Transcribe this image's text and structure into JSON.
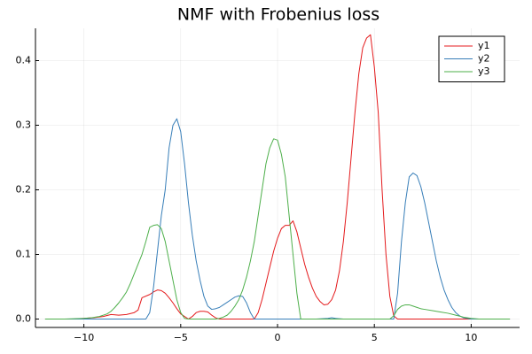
{
  "chart_data": {
    "type": "line",
    "title": "NMF with Frobenius loss",
    "xlabel": "",
    "ylabel": "",
    "xlim": [
      -12.5,
      12.5
    ],
    "ylim": [
      -0.013,
      0.45
    ],
    "xticks": [
      -10,
      -5,
      0,
      5,
      10
    ],
    "xtick_labels": [
      "−10",
      "−5",
      "0",
      "5",
      "10"
    ],
    "yticks": [
      0.0,
      0.1,
      0.2,
      0.3,
      0.4
    ],
    "ytick_labels": [
      "0.0",
      "0.1",
      "0.2",
      "0.3",
      "0.4"
    ],
    "grid": true,
    "legend_position": "top-right",
    "series": [
      {
        "name": "y1",
        "color": "#e41a1c",
        "x": [
          -12,
          -10.5,
          -10,
          -9.5,
          -9,
          -8.6,
          -8.2,
          -7.8,
          -7.4,
          -7.2,
          -7.0,
          -6.6,
          -6.4,
          -6.2,
          -6.0,
          -5.8,
          -5.6,
          -5.4,
          -5.2,
          -5.0,
          -4.6,
          -4.4,
          -4.2,
          -4.0,
          -3.8,
          -3.6,
          -3.4,
          -3.2,
          -3.0,
          -2.8,
          -2.6,
          -2.4,
          -2.0,
          -1.6,
          -1.2,
          -1.0,
          -0.8,
          -0.6,
          -0.4,
          -0.2,
          0.0,
          0.2,
          0.4,
          0.6,
          0.8,
          1.0,
          1.2,
          1.4,
          1.6,
          1.8,
          2.0,
          2.2,
          2.4,
          2.6,
          2.8,
          3.0,
          3.2,
          3.4,
          3.6,
          3.8,
          4.0,
          4.2,
          4.4,
          4.6,
          4.8,
          5.0,
          5.2,
          5.4,
          5.6,
          5.8,
          6.0,
          6.2,
          6.4,
          6.6,
          6.8,
          7.0,
          8,
          9,
          10,
          11,
          12
        ],
        "y": [
          0,
          0,
          0.001,
          0.002,
          0.004,
          0.007,
          0.006,
          0.007,
          0.01,
          0.014,
          0.033,
          0.038,
          0.042,
          0.045,
          0.044,
          0.04,
          0.033,
          0.025,
          0.016,
          0.008,
          0.0,
          0.004,
          0.01,
          0.012,
          0.012,
          0.011,
          0.006,
          0.002,
          0.0,
          0.0,
          0.0,
          0.0,
          0.0,
          0.0,
          0.0,
          0.01,
          0.03,
          0.055,
          0.08,
          0.105,
          0.125,
          0.14,
          0.145,
          0.145,
          0.152,
          0.135,
          0.11,
          0.085,
          0.065,
          0.048,
          0.035,
          0.027,
          0.022,
          0.023,
          0.03,
          0.045,
          0.075,
          0.12,
          0.18,
          0.25,
          0.32,
          0.38,
          0.42,
          0.435,
          0.44,
          0.39,
          0.32,
          0.2,
          0.1,
          0.035,
          0.005,
          0.0,
          0.0,
          0.0,
          0.0,
          0.0,
          0.0,
          0.0,
          0.0,
          0.0,
          0.0
        ]
      },
      {
        "name": "y2",
        "color": "#377eb8",
        "x": [
          -12,
          -11,
          -10,
          -9,
          -8,
          -7.2,
          -7.0,
          -6.8,
          -6.6,
          -6.4,
          -6.2,
          -6.0,
          -5.8,
          -5.6,
          -5.4,
          -5.2,
          -5.0,
          -4.8,
          -4.6,
          -4.4,
          -4.2,
          -4.0,
          -3.8,
          -3.6,
          -3.4,
          -3.2,
          -3.0,
          -2.8,
          -2.6,
          -2.4,
          -2.2,
          -2.0,
          -1.8,
          -1.6,
          -1.4,
          -1.2,
          -1.0,
          0,
          1,
          2,
          2.6,
          2.8,
          3.0,
          3.4,
          4,
          5,
          5.4,
          5.6,
          5.8,
          6.0,
          6.2,
          6.4,
          6.6,
          6.8,
          7.0,
          7.2,
          7.4,
          7.6,
          7.8,
          8.0,
          8.2,
          8.4,
          8.6,
          8.8,
          9.0,
          9.2,
          9.4,
          9.6,
          9.8,
          10,
          10.4,
          11,
          12
        ],
        "y": [
          0,
          0,
          0,
          0,
          0,
          0,
          0.0,
          0.0,
          0.01,
          0.05,
          0.105,
          0.16,
          0.2,
          0.265,
          0.3,
          0.31,
          0.29,
          0.24,
          0.18,
          0.13,
          0.09,
          0.06,
          0.035,
          0.02,
          0.015,
          0.016,
          0.018,
          0.022,
          0.026,
          0.03,
          0.034,
          0.036,
          0.035,
          0.025,
          0.01,
          0.0,
          0.0,
          0.0,
          0.0,
          0.0,
          0.001,
          0.002,
          0.001,
          0.0,
          0.0,
          0.0,
          0.0,
          0.0,
          0.0,
          0.0,
          0.04,
          0.12,
          0.18,
          0.22,
          0.226,
          0.222,
          0.205,
          0.18,
          0.15,
          0.12,
          0.09,
          0.065,
          0.045,
          0.03,
          0.018,
          0.01,
          0.005,
          0.002,
          0.001,
          0.0,
          0.0,
          0.0,
          0.0
        ]
      },
      {
        "name": "y3",
        "color": "#4daf4a",
        "x": [
          -12,
          -11,
          -10,
          -9.6,
          -9.2,
          -8.8,
          -8.6,
          -8.4,
          -8.2,
          -8.0,
          -7.8,
          -7.6,
          -7.4,
          -7.2,
          -7.0,
          -6.8,
          -6.6,
          -6.4,
          -6.2,
          -6.0,
          -5.8,
          -5.6,
          -5.4,
          -5.2,
          -5.0,
          -4.8,
          -4.6,
          -4.4,
          -4.2,
          -4.0,
          -3.6,
          -3.2,
          -3.0,
          -2.8,
          -2.6,
          -2.4,
          -2.2,
          -2.0,
          -1.8,
          -1.6,
          -1.4,
          -1.2,
          -1.0,
          -0.8,
          -0.6,
          -0.4,
          -0.2,
          0.0,
          0.2,
          0.4,
          0.6,
          0.8,
          1.0,
          1.2,
          1.4,
          2,
          3,
          4,
          5,
          5.8,
          6.0,
          6.2,
          6.4,
          6.6,
          6.8,
          7.0,
          7.2,
          7.4,
          7.6,
          8.0,
          8.4,
          8.8,
          9.2,
          9.6,
          10.0,
          10.4,
          11,
          12
        ],
        "y": [
          0,
          0,
          0.001,
          0.002,
          0.004,
          0.008,
          0.012,
          0.018,
          0.025,
          0.033,
          0.042,
          0.055,
          0.07,
          0.085,
          0.1,
          0.12,
          0.142,
          0.145,
          0.146,
          0.14,
          0.12,
          0.09,
          0.06,
          0.03,
          0.01,
          0.001,
          0.0,
          0.0,
          0.0,
          0.0,
          0.0,
          0.0,
          0.001,
          0.003,
          0.006,
          0.012,
          0.02,
          0.03,
          0.045,
          0.065,
          0.09,
          0.12,
          0.16,
          0.2,
          0.24,
          0.265,
          0.279,
          0.277,
          0.255,
          0.22,
          0.16,
          0.1,
          0.04,
          0.0,
          0.0,
          0.0,
          0.0,
          0.0,
          0.0,
          0.0,
          0.005,
          0.015,
          0.02,
          0.022,
          0.022,
          0.02,
          0.018,
          0.016,
          0.015,
          0.013,
          0.011,
          0.009,
          0.006,
          0.003,
          0.001,
          0.0,
          0.0,
          0.0
        ]
      }
    ]
  }
}
